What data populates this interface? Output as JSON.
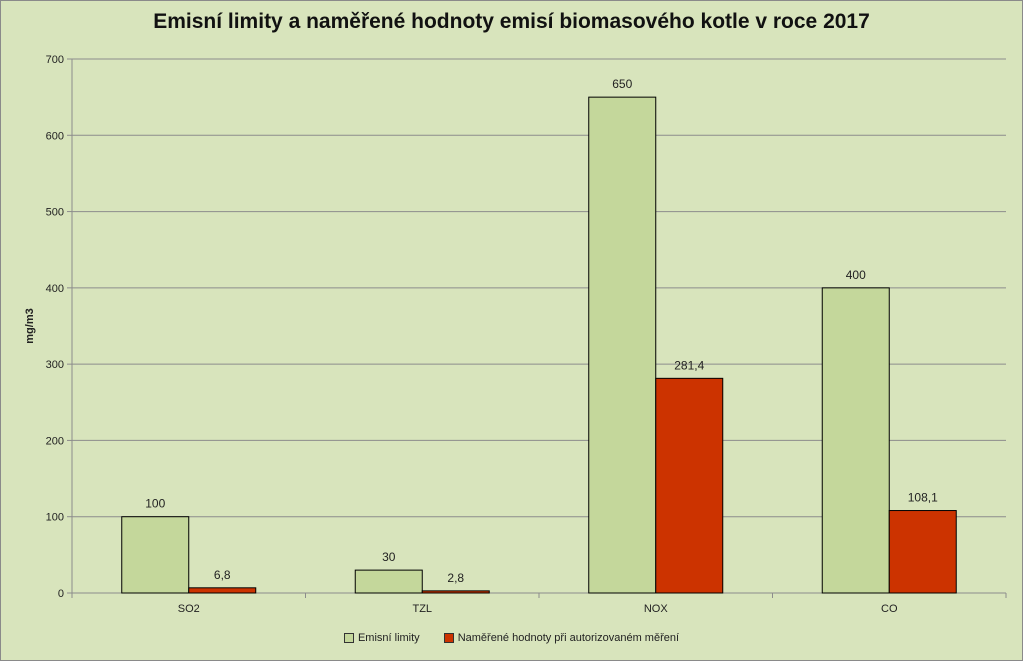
{
  "chart_data": {
    "type": "bar",
    "title": "Emisní limity a naměřené hodnoty emisí biomasového kotle v roce 2017",
    "ylabel": "mg/m3",
    "xlabel": "",
    "ylim": [
      0,
      700
    ],
    "yticks": [
      0,
      100,
      200,
      300,
      400,
      500,
      600,
      700
    ],
    "grid": true,
    "legend_position": "bottom",
    "categories": [
      "SO2",
      "TZL",
      "NOX",
      "CO"
    ],
    "series": [
      {
        "name": "Emisní limity",
        "values": [
          100,
          30,
          650,
          400
        ],
        "labels": [
          "100",
          "30",
          "650",
          "400"
        ],
        "color": "#c4d79b"
      },
      {
        "name": "Naměřené hodnoty při autorizovaném měření",
        "values": [
          6.8,
          2.8,
          281.4,
          108.1
        ],
        "labels": [
          "6,8",
          "2,8",
          "281,4",
          "108,1"
        ],
        "color": "#cc3300"
      }
    ]
  }
}
